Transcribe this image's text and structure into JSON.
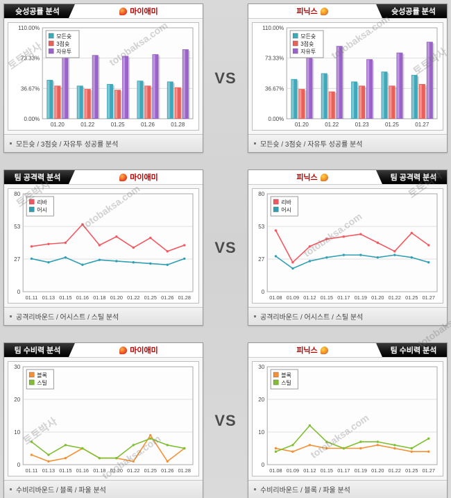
{
  "page": {
    "vs": "VS"
  },
  "watermark": {
    "kr": "토토박사",
    "en": "totobaksa.com"
  },
  "panels": [
    {
      "header_title": "슛성공률 분석",
      "team": "마이애미",
      "footer": "모든슛 / 3점슛 / 자유투 성공률 분석"
    },
    {
      "header_title": "슛성공률 분석",
      "team": "피닉스",
      "footer": "모든슛 / 3점슛 / 자유투 성공률 분석"
    },
    {
      "header_title": "팀 공격력 분석",
      "team": "마이애미",
      "footer": "공격리바운드 / 어시스트 / 스틸 분석"
    },
    {
      "header_title": "팀 공격력 분석",
      "team": "피닉스",
      "footer": "공격리바운드 / 어시스트 / 스틸 분석"
    },
    {
      "header_title": "팀 수비력 분석",
      "team": "마이애미",
      "footer": "수비리바운드 / 블록 / 파울 분석"
    },
    {
      "header_title": "팀 수비력 분석",
      "team": "피닉스",
      "footer": "수비리바운드 / 블록 / 파울 분석"
    }
  ],
  "chart_data": [
    {
      "type": "bar",
      "title": "슛성공률 분석 - 마이애미",
      "categories": [
        "01.20",
        "01.22",
        "01.25",
        "01.26",
        "01.28"
      ],
      "series": [
        {
          "name": "모든슛",
          "color": "#3FA9BC",
          "values": [
            47,
            40,
            42,
            46,
            45
          ]
        },
        {
          "name": "3점슛",
          "color": "#E9605A",
          "values": [
            40,
            36,
            35,
            40,
            38
          ]
        },
        {
          "name": "자유투",
          "color": "#9A63C9",
          "values": [
            87,
            77,
            76,
            78,
            84
          ]
        }
      ],
      "ylim": [
        0,
        110
      ],
      "yticks": [
        "0.00%",
        "36.67%",
        "73.33%",
        "110.00%"
      ],
      "legend_position": "top-left",
      "grid": true
    },
    {
      "type": "bar",
      "title": "슛성공률 분석 - 피닉스",
      "categories": [
        "01.20",
        "01.22",
        "01.23",
        "01.25",
        "01.27"
      ],
      "series": [
        {
          "name": "모든슛",
          "color": "#3FA9BC",
          "values": [
            48,
            55,
            45,
            57,
            53
          ]
        },
        {
          "name": "3점슛",
          "color": "#E9605A",
          "values": [
            36,
            33,
            40,
            40,
            42
          ]
        },
        {
          "name": "자유투",
          "color": "#9A63C9",
          "values": [
            74,
            88,
            72,
            80,
            93
          ]
        }
      ],
      "ylim": [
        0,
        110
      ],
      "yticks": [
        "0.00%",
        "36.67%",
        "73.33%",
        "110.00%"
      ],
      "legend_position": "top-left",
      "grid": true
    },
    {
      "type": "line",
      "title": "팀 공격력 분석 - 마이애미",
      "categories": [
        "01.11",
        "01.13",
        "01.15",
        "01.16",
        "01.18",
        "01.20",
        "01.22",
        "01.25",
        "01.26",
        "01.28"
      ],
      "series": [
        {
          "name": "리바",
          "color": "#F4575F",
          "values": [
            37,
            39,
            40,
            55,
            38,
            45,
            36,
            44,
            33,
            38
          ]
        },
        {
          "name": "어시",
          "color": "#2F9FB4",
          "values": [
            27,
            24,
            28,
            22,
            26,
            25,
            24,
            23,
            22,
            27
          ]
        }
      ],
      "ylim": [
        0,
        80
      ],
      "yticks": [
        "0",
        "27",
        "53",
        "80"
      ],
      "legend_position": "top-left",
      "grid": true
    },
    {
      "type": "line",
      "title": "팀 공격력 분석 - 피닉스",
      "categories": [
        "01.08",
        "01.09",
        "01.12",
        "01.15",
        "01.17",
        "01.19",
        "01.20",
        "01.22",
        "01.25",
        "01.27"
      ],
      "series": [
        {
          "name": "리바",
          "color": "#F4575F",
          "values": [
            50,
            24,
            37,
            43,
            45,
            47,
            40,
            33,
            48,
            38
          ]
        },
        {
          "name": "어시",
          "color": "#2F9FB4",
          "values": [
            29,
            19,
            25,
            28,
            30,
            30,
            28,
            30,
            28,
            24
          ]
        }
      ],
      "ylim": [
        0,
        80
      ],
      "yticks": [
        "0",
        "27",
        "53",
        "80"
      ],
      "legend_position": "top-left",
      "grid": true
    },
    {
      "type": "line",
      "title": "팀 수비력 분석 - 마이애미",
      "categories": [
        "01.11",
        "01.13",
        "01.15",
        "01.16",
        "01.18",
        "01.20",
        "01.22",
        "01.25",
        "01.26",
        "01.28"
      ],
      "series": [
        {
          "name": "블록",
          "color": "#F59135",
          "values": [
            3,
            1,
            2,
            5,
            2,
            2,
            1,
            9,
            1,
            5
          ]
        },
        {
          "name": "스틸",
          "color": "#7FBF30",
          "values": [
            7,
            3,
            6,
            5,
            2,
            2,
            6,
            8,
            6,
            5
          ]
        }
      ],
      "ylim": [
        0,
        30
      ],
      "yticks": [
        "0",
        "10",
        "20",
        "30"
      ],
      "legend_position": "top-left",
      "grid": true
    },
    {
      "type": "line",
      "title": "팀 수비력 분석 - 피닉스",
      "categories": [
        "01.08",
        "01.09",
        "01.12",
        "01.15",
        "01.17",
        "01.19",
        "01.20",
        "01.22",
        "01.25",
        "01.27"
      ],
      "series": [
        {
          "name": "블록",
          "color": "#F59135",
          "values": [
            5,
            4,
            6,
            5,
            5,
            5,
            6,
            5,
            4,
            4
          ]
        },
        {
          "name": "스틸",
          "color": "#7FBF30",
          "values": [
            4,
            6,
            12,
            7,
            5,
            7,
            7,
            6,
            5,
            8
          ]
        }
      ],
      "ylim": [
        0,
        30
      ],
      "yticks": [
        "0",
        "10",
        "20",
        "30"
      ],
      "legend_position": "top-left",
      "grid": true
    }
  ]
}
